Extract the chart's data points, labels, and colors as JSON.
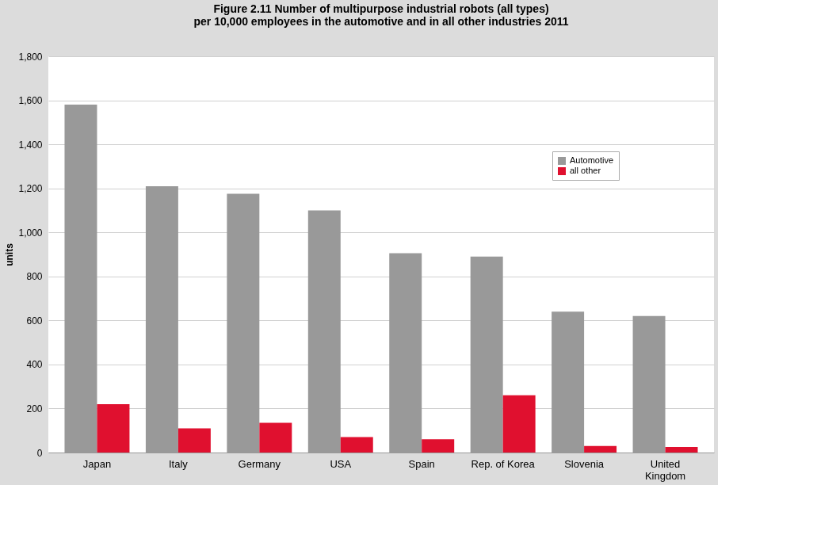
{
  "chart_data": {
    "type": "bar",
    "title": "Figure 2.11  Number of multipurpose industrial robots (all types)\nper 10,000 employees in the automotive and in all other industries 2011",
    "ylabel": "units",
    "categories": [
      "Japan",
      "Italy",
      "Germany",
      "USA",
      "Spain",
      "Rep. of Korea",
      "Slovenia",
      "United Kingdom"
    ],
    "series": [
      {
        "name": "Automotive",
        "color": "#999999",
        "values": [
          1580,
          1210,
          1175,
          1100,
          905,
          890,
          640,
          620
        ]
      },
      {
        "name": "all other",
        "color": "#e0102f",
        "values": [
          220,
          110,
          135,
          70,
          60,
          260,
          30,
          25
        ]
      }
    ],
    "ylim": [
      0,
      1800
    ],
    "yticks": [
      {
        "value": 0,
        "label": "0"
      },
      {
        "value": 200,
        "label": "200"
      },
      {
        "value": 400,
        "label": "400"
      },
      {
        "value": 600,
        "label": "600"
      },
      {
        "value": 800,
        "label": "800"
      },
      {
        "value": 1000,
        "label": "1,000"
      },
      {
        "value": 1200,
        "label": "1,200"
      },
      {
        "value": 1400,
        "label": "1,400"
      },
      {
        "value": 1600,
        "label": "1,600"
      },
      {
        "value": 1800,
        "label": "1,800"
      }
    ],
    "grid": "y",
    "legend": "top right"
  }
}
